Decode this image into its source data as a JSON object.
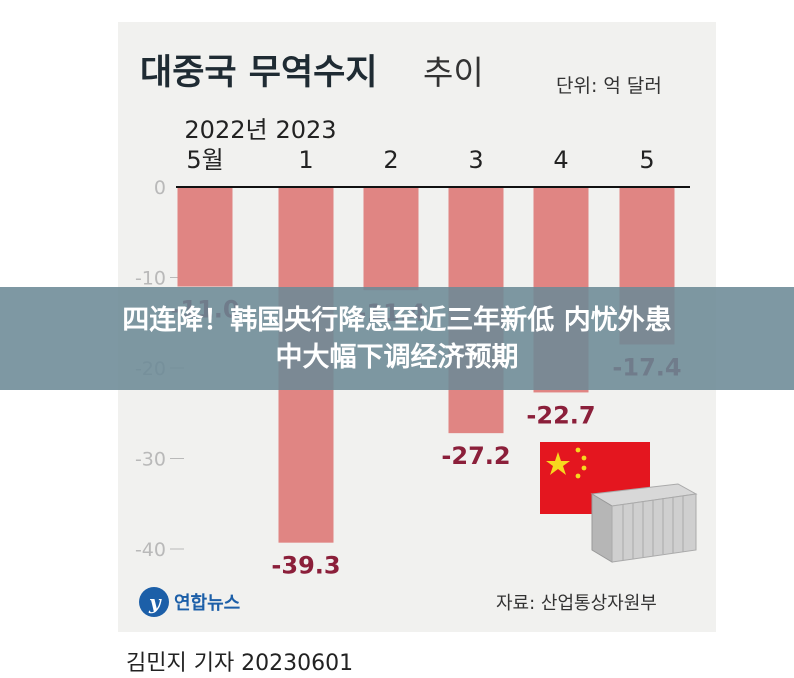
{
  "chart_data": {
    "type": "bar",
    "title": "대중국 무역수지",
    "subtitle": "추이",
    "unit_label": "단위: 억 달러",
    "categories": [
      "2022년 5월",
      "2023 1",
      "2",
      "3",
      "4",
      "5"
    ],
    "category_labels": [
      {
        "top": "2022년",
        "bottom": "5월"
      },
      {
        "top": "2023",
        "bottom": "1"
      },
      {
        "top": "",
        "bottom": "2"
      },
      {
        "top": "",
        "bottom": "3"
      },
      {
        "top": "",
        "bottom": "4"
      },
      {
        "top": "",
        "bottom": "5"
      }
    ],
    "values": [
      -11.0,
      -39.3,
      -11.4,
      -27.2,
      -22.7,
      -17.4
    ],
    "data_labels": [
      "-11.0",
      "-39.3",
      "-11.4",
      "-27.2",
      "-22.7",
      "-17.4"
    ],
    "yticks": [
      0,
      -10,
      -20,
      -30,
      -40
    ],
    "ylim": [
      -45,
      0
    ],
    "grid": false,
    "colors": {
      "bar": "#e08583",
      "label": "#8b1f3a",
      "axis": "#111111",
      "tick": "#b9b9b9"
    },
    "source": "자료: 산업통상자원부",
    "logo_text": "연합뉴스"
  },
  "banner": {
    "line1": "四连降！韩国央行降息至近三年新低 内忧外患",
    "line2": "中大幅下调经济预期"
  },
  "credit": "김민지 기자  20230601"
}
